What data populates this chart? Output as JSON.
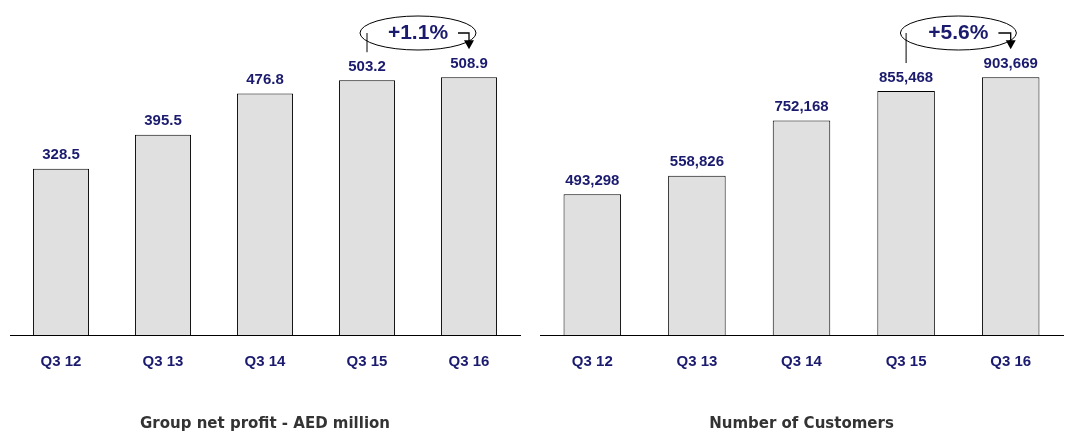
{
  "chart_data": [
    {
      "type": "bar",
      "title": "Group net profit - AED million",
      "categories": [
        "Q3 12",
        "Q3 13",
        "Q3 14",
        "Q3 15",
        "Q3 16"
      ],
      "values": [
        328.5,
        395.5,
        476.8,
        503.2,
        508.9
      ],
      "value_labels": [
        "328.5",
        "395.5",
        "476.8",
        "503.2",
        "508.9"
      ],
      "color": "#e0e0e0",
      "annotations": [
        "+1.1%"
      ]
    },
    {
      "type": "bar",
      "title": "Number of Customers",
      "categories": [
        "Q3 12",
        "Q3 13",
        "Q3 14",
        "Q3 15",
        "Q3 16"
      ],
      "values": [
        493298,
        558826,
        752168,
        855468,
        903669
      ],
      "value_labels": [
        "493,298",
        "558,826",
        "752,168",
        "855,468",
        "903,669"
      ],
      "color": "#e0e0e0",
      "annotations": [
        "+5.6%"
      ]
    }
  ]
}
